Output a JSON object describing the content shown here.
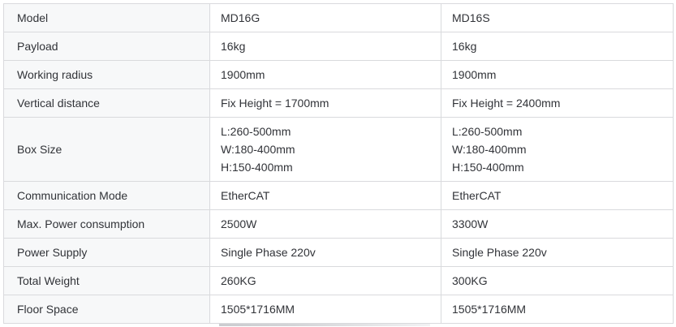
{
  "theme": {
    "page_bg": "#ffffff",
    "header_bg": "#f7f8f9",
    "label_col_bg": "#f7f8f9",
    "cell_bg": "#ffffff",
    "border_color": "#d9dadd",
    "text_color": "#313338"
  },
  "table": {
    "header": {
      "label": "Model",
      "model_a": "MD16G",
      "model_b": "MD16S"
    },
    "rows": [
      {
        "label": "Payload",
        "model_a": "16kg",
        "model_b": "16kg"
      },
      {
        "label": "Working radius",
        "model_a": "1900mm",
        "model_b": "1900mm"
      },
      {
        "label": "Vertical distance",
        "model_a": "Fix Height = 1700mm",
        "model_b": "Fix Height = 2400mm"
      },
      {
        "label": "Box Size",
        "model_a": [
          "L:260-500mm",
          "W:180-400mm",
          "H:150-400mm"
        ],
        "model_b": [
          "L:260-500mm",
          "W:180-400mm",
          "H:150-400mm"
        ]
      },
      {
        "label": "Communication Mode",
        "model_a": "EtherCAT",
        "model_b": "EtherCAT"
      },
      {
        "label": "Max. Power consumption",
        "model_a": "2500W",
        "model_b": "3300W"
      },
      {
        "label": "Power Supply",
        "model_a": "Single Phase 220v",
        "model_b": "Single Phase 220v"
      },
      {
        "label": "Total Weight",
        "model_a": "260KG",
        "model_b": "300KG"
      },
      {
        "label": "Floor Space",
        "model_a": "1505*1716MM",
        "model_b": "1505*1716MM"
      }
    ]
  }
}
